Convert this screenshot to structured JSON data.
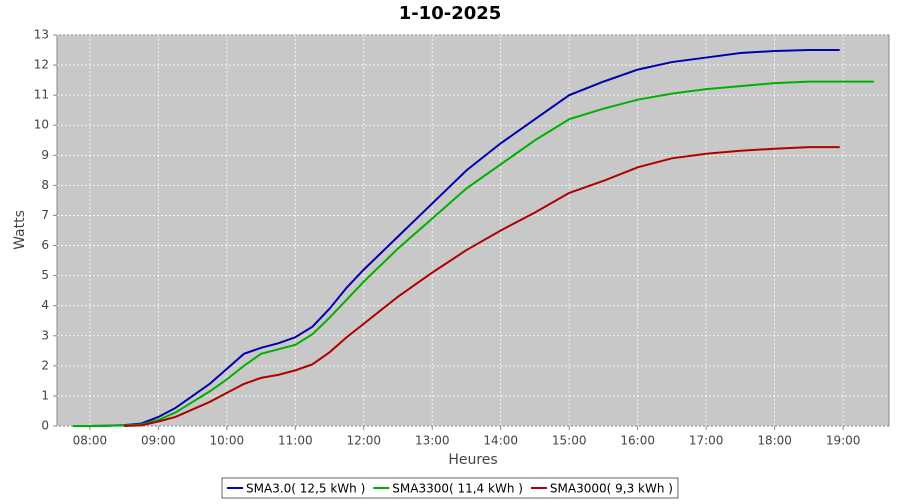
{
  "chart_data": {
    "type": "line",
    "title": "1-10-2025",
    "x_label": "Heures",
    "y_label": "Watts",
    "x": [
      7.75,
      8,
      8.25,
      8.5,
      8.75,
      9,
      9.25,
      9.5,
      9.75,
      10,
      10.25,
      10.5,
      10.75,
      11,
      11.25,
      11.5,
      11.75,
      12,
      12.5,
      13,
      13.5,
      14,
      14.5,
      15,
      15.5,
      16,
      16.5,
      17,
      17.5,
      18,
      18.5,
      18.95,
      19.45
    ],
    "series": [
      {
        "name": "SMA3.0( 12,5 kWh )",
        "color": "#0000b0",
        "values": [
          null,
          0,
          0.01,
          0.03,
          0.08,
          0.3,
          0.6,
          1.0,
          1.4,
          1.9,
          2.4,
          2.6,
          2.75,
          2.95,
          3.3,
          3.9,
          4.6,
          5.2,
          6.3,
          7.4,
          8.5,
          9.4,
          10.2,
          11.0,
          11.45,
          11.85,
          12.1,
          12.25,
          12.4,
          12.47,
          12.5,
          12.5,
          null
        ]
      },
      {
        "name": "SMA3300( 11,4 kWh )",
        "color": "#00b000",
        "values": [
          0,
          0,
          0.01,
          0.02,
          0.05,
          0.2,
          0.45,
          0.8,
          1.15,
          1.55,
          2.0,
          2.4,
          2.55,
          2.7,
          3.05,
          3.6,
          4.2,
          4.8,
          5.9,
          6.9,
          7.9,
          8.7,
          9.5,
          10.2,
          10.55,
          10.85,
          11.05,
          11.2,
          11.3,
          11.4,
          11.45,
          11.45,
          11.45
        ]
      },
      {
        "name": "SMA3000( 9,3 kWh )",
        "color": "#b00000",
        "values": [
          null,
          null,
          null,
          0,
          0.02,
          0.15,
          0.3,
          0.55,
          0.8,
          1.1,
          1.4,
          1.6,
          1.7,
          1.85,
          2.05,
          2.45,
          2.95,
          3.4,
          4.3,
          5.1,
          5.85,
          6.5,
          7.1,
          7.75,
          8.15,
          8.6,
          8.9,
          9.05,
          9.15,
          9.22,
          9.27,
          9.27,
          null
        ]
      }
    ],
    "xlim": [
      7.52,
      19.67
    ],
    "xticks": [
      {
        "value": 8,
        "label": "08:00"
      },
      {
        "value": 9,
        "label": "09:00"
      },
      {
        "value": 10,
        "label": "10:00"
      },
      {
        "value": 11,
        "label": "11:00"
      },
      {
        "value": 12,
        "label": "12:00"
      },
      {
        "value": 13,
        "label": "13:00"
      },
      {
        "value": 14,
        "label": "14:00"
      },
      {
        "value": 15,
        "label": "15:00"
      },
      {
        "value": 16,
        "label": "16:00"
      },
      {
        "value": 17,
        "label": "17:00"
      },
      {
        "value": 18,
        "label": "18:00"
      },
      {
        "value": 19,
        "label": "19:00"
      }
    ],
    "ylim": [
      0,
      13
    ],
    "yticks": [
      0,
      1,
      2,
      3,
      4,
      5,
      6,
      7,
      8,
      9,
      10,
      11,
      12,
      13
    ],
    "grid": true,
    "legend": "bottom"
  }
}
